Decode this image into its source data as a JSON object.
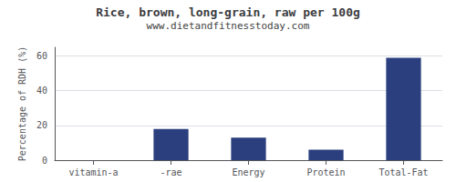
{
  "chart_data": {
    "type": "bar",
    "title": "Rice, brown, long-grain, raw per 100g",
    "subtitle": "www.dietandfitnesstoday.com",
    "categories": [
      "vitamin-a",
      "-rae",
      "Energy",
      "Protein",
      "Total-Fat"
    ],
    "values": [
      0,
      18,
      13,
      6,
      59
    ],
    "color": "#2b3f7e",
    "ylabel": "Percentage of RDH (%)",
    "ylim": [
      0,
      65
    ],
    "yticks": [
      0,
      20,
      40,
      60
    ],
    "grid": true
  }
}
